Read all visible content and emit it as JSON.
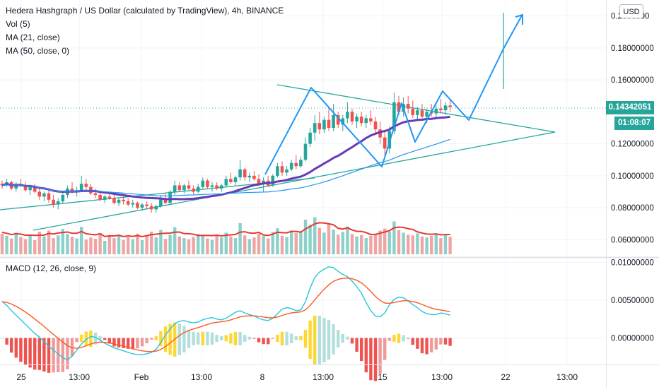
{
  "header": {
    "symbol_title": "Hedera Hashgraph / US Dollar (calculated by TradingView), 4h, BINANCE",
    "indicators": [
      "Vol (5)",
      "MA (21, close)",
      "MA (50, close, 0)"
    ],
    "macd_title": "MACD (12, 26, close, 9)",
    "currency_button": "USD"
  },
  "price_scale": {
    "labels": [
      "0.2000000",
      "0.18000000",
      "0.16000000",
      "0.12000000",
      "0.10000000",
      "0.08000000",
      "0.06000000"
    ],
    "last_price": "0.14342051",
    "countdown": "01:08:07",
    "last_price_color": "#26a69a"
  },
  "macd_scale": {
    "labels": [
      "0.01000000",
      "0.00500000",
      "0.00000000"
    ]
  },
  "time_axis": {
    "labels": [
      "25",
      "13:00",
      "Feb",
      "13:00",
      "8",
      "13:00",
      "15",
      "13:00",
      "22",
      "13:00"
    ]
  },
  "colors": {
    "up": "#26a69a",
    "down": "#ef5350",
    "ma21": "#2196f3",
    "ma50": "#673ab7",
    "drawing": "#2196f3",
    "trendline": "#26a69a",
    "macd_line": "#26c6da",
    "signal_line": "#ff5722",
    "hist_pos": "#b2dfdb",
    "hist_neg": "#ef9a9a",
    "hist_highlight": "#fdd835"
  },
  "chart_data": {
    "type": "candlestick",
    "timeframe": "4h",
    "price_ylim": [
      0.05,
      0.21
    ],
    "macd_ylim": [
      -0.0035,
      0.0105
    ],
    "candles": [
      [
        0.095,
        0.097,
        0.092,
        0.094
      ],
      [
        0.094,
        0.098,
        0.093,
        0.096
      ],
      [
        0.096,
        0.097,
        0.091,
        0.092
      ],
      [
        0.092,
        0.096,
        0.09,
        0.095
      ],
      [
        0.095,
        0.098,
        0.093,
        0.094
      ],
      [
        0.094,
        0.096,
        0.09,
        0.091
      ],
      [
        0.091,
        0.094,
        0.088,
        0.093
      ],
      [
        0.093,
        0.095,
        0.089,
        0.09
      ],
      [
        0.09,
        0.092,
        0.085,
        0.087
      ],
      [
        0.087,
        0.09,
        0.084,
        0.089
      ],
      [
        0.089,
        0.091,
        0.083,
        0.085
      ],
      [
        0.085,
        0.088,
        0.08,
        0.082
      ],
      [
        0.082,
        0.086,
        0.079,
        0.084
      ],
      [
        0.084,
        0.09,
        0.083,
        0.088
      ],
      [
        0.088,
        0.094,
        0.086,
        0.092
      ],
      [
        0.092,
        0.096,
        0.089,
        0.09
      ],
      [
        0.09,
        0.093,
        0.087,
        0.091
      ],
      [
        0.091,
        0.1,
        0.09,
        0.095
      ],
      [
        0.095,
        0.098,
        0.091,
        0.093
      ],
      [
        0.093,
        0.095,
        0.088,
        0.089
      ],
      [
        0.089,
        0.092,
        0.086,
        0.088
      ],
      [
        0.088,
        0.09,
        0.084,
        0.085
      ],
      [
        0.085,
        0.088,
        0.083,
        0.087
      ],
      [
        0.087,
        0.09,
        0.085,
        0.086
      ],
      [
        0.086,
        0.088,
        0.082,
        0.083
      ],
      [
        0.083,
        0.086,
        0.081,
        0.085
      ],
      [
        0.085,
        0.087,
        0.082,
        0.084
      ],
      [
        0.084,
        0.086,
        0.081,
        0.082
      ],
      [
        0.082,
        0.085,
        0.08,
        0.083
      ],
      [
        0.083,
        0.084,
        0.079,
        0.08
      ],
      [
        0.08,
        0.083,
        0.078,
        0.082
      ],
      [
        0.082,
        0.084,
        0.079,
        0.081
      ],
      [
        0.081,
        0.083,
        0.077,
        0.079
      ],
      [
        0.079,
        0.082,
        0.077,
        0.081
      ],
      [
        0.081,
        0.088,
        0.08,
        0.086
      ],
      [
        0.086,
        0.089,
        0.082,
        0.083
      ],
      [
        0.083,
        0.091,
        0.082,
        0.09
      ],
      [
        0.09,
        0.097,
        0.088,
        0.094
      ],
      [
        0.094,
        0.096,
        0.09,
        0.091
      ],
      [
        0.091,
        0.095,
        0.089,
        0.094
      ],
      [
        0.094,
        0.097,
        0.091,
        0.092
      ],
      [
        0.092,
        0.094,
        0.088,
        0.09
      ],
      [
        0.09,
        0.095,
        0.089,
        0.093
      ],
      [
        0.093,
        0.099,
        0.092,
        0.097
      ],
      [
        0.097,
        0.098,
        0.092,
        0.093
      ],
      [
        0.093,
        0.096,
        0.09,
        0.094
      ],
      [
        0.094,
        0.096,
        0.091,
        0.092
      ],
      [
        0.092,
        0.095,
        0.09,
        0.094
      ],
      [
        0.094,
        0.1,
        0.093,
        0.098
      ],
      [
        0.098,
        0.102,
        0.095,
        0.096
      ],
      [
        0.096,
        0.1,
        0.094,
        0.099
      ],
      [
        0.099,
        0.11,
        0.097,
        0.104
      ],
      [
        0.104,
        0.105,
        0.097,
        0.099
      ],
      [
        0.099,
        0.102,
        0.096,
        0.1
      ],
      [
        0.1,
        0.103,
        0.097,
        0.098
      ],
      [
        0.098,
        0.101,
        0.094,
        0.095
      ],
      [
        0.095,
        0.099,
        0.09,
        0.097
      ],
      [
        0.097,
        0.1,
        0.093,
        0.094
      ],
      [
        0.094,
        0.101,
        0.093,
        0.1
      ],
      [
        0.1,
        0.108,
        0.099,
        0.106
      ],
      [
        0.106,
        0.109,
        0.1,
        0.102
      ],
      [
        0.102,
        0.106,
        0.1,
        0.104
      ],
      [
        0.104,
        0.11,
        0.103,
        0.108
      ],
      [
        0.108,
        0.113,
        0.104,
        0.106
      ],
      [
        0.106,
        0.112,
        0.105,
        0.11
      ],
      [
        0.11,
        0.124,
        0.109,
        0.12
      ],
      [
        0.12,
        0.13,
        0.118,
        0.127
      ],
      [
        0.127,
        0.138,
        0.122,
        0.133
      ],
      [
        0.133,
        0.14,
        0.126,
        0.129
      ],
      [
        0.129,
        0.137,
        0.127,
        0.135
      ],
      [
        0.135,
        0.142,
        0.128,
        0.13
      ],
      [
        0.13,
        0.145,
        0.128,
        0.138
      ],
      [
        0.138,
        0.14,
        0.13,
        0.132
      ],
      [
        0.132,
        0.138,
        0.128,
        0.136
      ],
      [
        0.136,
        0.146,
        0.133,
        0.14
      ],
      [
        0.14,
        0.142,
        0.132,
        0.134
      ],
      [
        0.134,
        0.139,
        0.13,
        0.137
      ],
      [
        0.137,
        0.14,
        0.131,
        0.133
      ],
      [
        0.133,
        0.138,
        0.13,
        0.136
      ],
      [
        0.136,
        0.141,
        0.132,
        0.134
      ],
      [
        0.134,
        0.137,
        0.126,
        0.129
      ],
      [
        0.129,
        0.134,
        0.12,
        0.124
      ],
      [
        0.124,
        0.128,
        0.113,
        0.117
      ],
      [
        0.117,
        0.131,
        0.114,
        0.128
      ],
      [
        0.128,
        0.152,
        0.126,
        0.146
      ],
      [
        0.146,
        0.15,
        0.138,
        0.14
      ],
      [
        0.14,
        0.149,
        0.137,
        0.145
      ],
      [
        0.145,
        0.15,
        0.139,
        0.142
      ],
      [
        0.142,
        0.147,
        0.136,
        0.138
      ],
      [
        0.138,
        0.143,
        0.134,
        0.141
      ],
      [
        0.141,
        0.145,
        0.136,
        0.137
      ],
      [
        0.137,
        0.142,
        0.133,
        0.14
      ],
      [
        0.14,
        0.145,
        0.137,
        0.139
      ],
      [
        0.139,
        0.144,
        0.136,
        0.142
      ],
      [
        0.142,
        0.148,
        0.139,
        0.141
      ],
      [
        0.141,
        0.146,
        0.138,
        0.144
      ],
      [
        0.144,
        0.148,
        0.14,
        0.143
      ]
    ],
    "volume": [
      0.52,
      0.46,
      0.38,
      0.55,
      0.42,
      0.36,
      0.48,
      0.33,
      0.58,
      0.44,
      0.61,
      0.39,
      0.47,
      0.66,
      0.51,
      0.43,
      0.38,
      0.72,
      0.35,
      0.41,
      0.37,
      0.54,
      0.31,
      0.45,
      0.39,
      0.48,
      0.34,
      0.42,
      0.36,
      0.52,
      0.33,
      0.47,
      0.58,
      0.41,
      0.63,
      0.37,
      0.49,
      0.71,
      0.44,
      0.39,
      0.36,
      0.42,
      0.51,
      0.46,
      0.38,
      0.34,
      0.48,
      0.41,
      0.55,
      0.44,
      0.39,
      0.83,
      0.47,
      0.36,
      0.41,
      0.52,
      0.45,
      0.38,
      0.57,
      0.68,
      0.46,
      0.42,
      0.61,
      0.54,
      0.59,
      0.93,
      0.78,
      1.0,
      0.69,
      0.55,
      0.82,
      0.64,
      0.49,
      0.57,
      0.73,
      0.51,
      0.44,
      0.48,
      0.39,
      0.46,
      0.52,
      0.61,
      0.67,
      0.58,
      0.88,
      0.62,
      0.55,
      0.49,
      0.47,
      0.53,
      0.44,
      0.41,
      0.46,
      0.52,
      0.39,
      0.48,
      0.43
    ],
    "time_ticks": [
      "25",
      "13:00",
      "Feb",
      "13:00",
      "8",
      "13:00",
      "15",
      "13:00",
      "22",
      "13:00"
    ]
  }
}
